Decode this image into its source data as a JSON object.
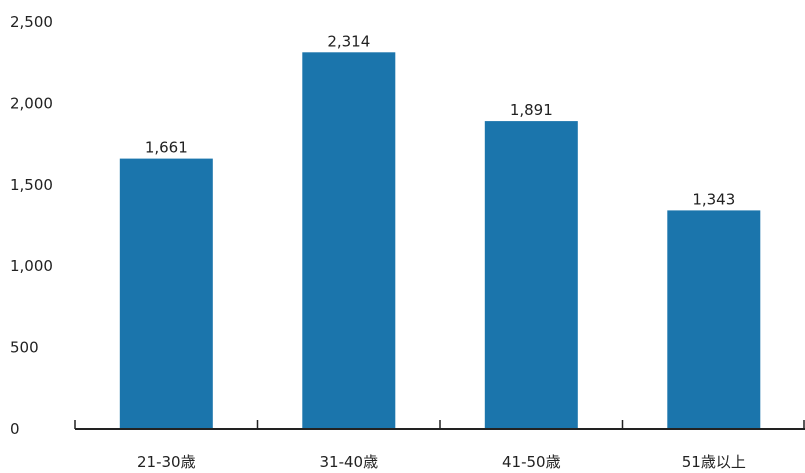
{
  "colors": {
    "bar": "#1B75AC",
    "axis": "#222222",
    "text": "#222222"
  },
  "chart_data": {
    "type": "bar",
    "categories": [
      "21-30歳",
      "31-40歳",
      "41-50歳",
      "51歳以上"
    ],
    "values": [
      1661,
      2314,
      1891,
      1343
    ],
    "data_labels": [
      "1,661",
      "2,314",
      "1,891",
      "1,343"
    ],
    "y_ticks": [
      0,
      500,
      1000,
      1500,
      2000,
      2500
    ],
    "y_tick_labels": [
      "0",
      "500",
      "1,000",
      "1,500",
      "2,000",
      "2,500"
    ],
    "ylim": [
      0,
      2500
    ],
    "grid": false,
    "legend": "none",
    "title": "",
    "xlabel": "",
    "ylabel": ""
  }
}
